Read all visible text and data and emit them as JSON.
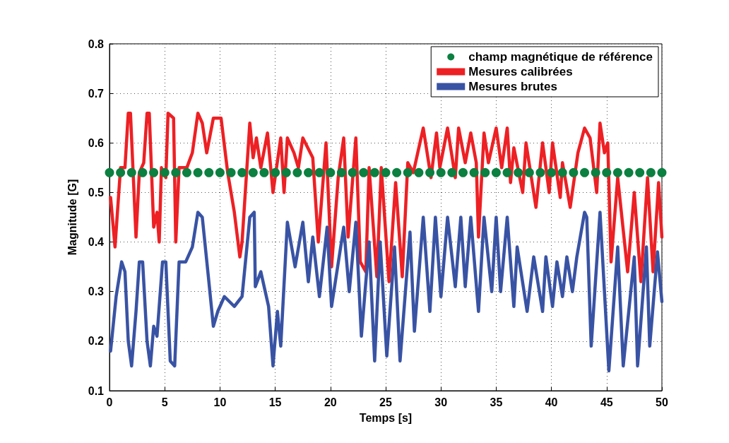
{
  "chart_data": {
    "type": "line",
    "xlabel": "Temps [s]",
    "ylabel": "Magnitude [G]",
    "xlim": [
      0,
      50
    ],
    "xticks": [
      0,
      5,
      10,
      15,
      20,
      25,
      30,
      35,
      40,
      45,
      50
    ],
    "ylim": [
      0.1,
      0.8
    ],
    "yticks": [
      0.1,
      0.2,
      0.3,
      0.4,
      0.5,
      0.6,
      0.7,
      0.8
    ],
    "grid": true,
    "legend": "top right",
    "series": [
      {
        "name": "champ magnétique de référence",
        "type": "scatter",
        "marker": "circle",
        "color": "#0b8040",
        "x": [
          0,
          1,
          2,
          3,
          4,
          5,
          6,
          7,
          8,
          9,
          10,
          11,
          12,
          13,
          14,
          15,
          16,
          17,
          18,
          19,
          20,
          21,
          22,
          23,
          24,
          25,
          26,
          27,
          28,
          29,
          30,
          31,
          32,
          33,
          34,
          35,
          36,
          37,
          38,
          39,
          40,
          41,
          42,
          43,
          44,
          45,
          46,
          47,
          48,
          49,
          50
        ],
        "values": [
          0.54,
          0.54,
          0.54,
          0.54,
          0.54,
          0.54,
          0.54,
          0.54,
          0.54,
          0.54,
          0.54,
          0.54,
          0.54,
          0.54,
          0.54,
          0.54,
          0.54,
          0.54,
          0.54,
          0.54,
          0.54,
          0.54,
          0.54,
          0.54,
          0.54,
          0.54,
          0.54,
          0.54,
          0.54,
          0.54,
          0.54,
          0.54,
          0.54,
          0.54,
          0.54,
          0.54,
          0.54,
          0.54,
          0.54,
          0.54,
          0.54,
          0.54,
          0.54,
          0.54,
          0.54,
          0.54,
          0.54,
          0.54,
          0.54,
          0.54,
          0.54
        ]
      },
      {
        "name": "Mesures calibrées",
        "color": "#ed2024",
        "x": [
          0.1,
          0.5,
          1.0,
          1.4,
          1.7,
          1.9,
          2.4,
          2.7,
          3.1,
          3.4,
          3.6,
          4.0,
          4.3,
          4.5,
          4.7,
          5.1,
          5.3,
          5.8,
          6.0,
          6.3,
          7.0,
          7.5,
          8.0,
          8.4,
          8.8,
          9.4,
          10.1,
          10.7,
          11.3,
          11.8,
          12.0,
          12.7,
          13.0,
          13.3,
          13.7,
          14.3,
          14.8,
          15.5,
          15.8,
          16.1,
          16.7,
          17.1,
          17.5,
          18.4,
          18.9,
          19.6,
          20.1,
          20.7,
          21.2,
          21.6,
          22.3,
          22.7,
          23.2,
          23.5,
          24.2,
          24.6,
          25.3,
          25.9,
          26.5,
          27.0,
          27.5,
          27.9,
          28.4,
          29.1,
          29.6,
          29.9,
          30.6,
          31.3,
          31.6,
          32.2,
          32.7,
          33.2,
          33.4,
          33.9,
          34.3,
          35.0,
          35.5,
          36.0,
          36.3,
          36.6,
          37.4,
          37.7,
          38.6,
          39.2,
          39.8,
          40.1,
          40.8,
          41.0,
          41.7,
          42.4,
          43.0,
          43.5,
          44.1,
          44.4,
          44.8,
          45.1,
          45.4,
          46.0,
          46.9,
          47.5,
          48.1,
          48.7,
          49.2,
          49.7,
          50.0
        ],
        "values": [
          0.49,
          0.39,
          0.55,
          0.55,
          0.66,
          0.66,
          0.41,
          0.54,
          0.56,
          0.66,
          0.66,
          0.43,
          0.46,
          0.4,
          0.55,
          0.53,
          0.66,
          0.65,
          0.4,
          0.55,
          0.55,
          0.58,
          0.66,
          0.64,
          0.58,
          0.65,
          0.65,
          0.54,
          0.46,
          0.37,
          0.4,
          0.64,
          0.57,
          0.61,
          0.55,
          0.62,
          0.5,
          0.61,
          0.5,
          0.61,
          0.58,
          0.55,
          0.61,
          0.57,
          0.4,
          0.6,
          0.35,
          0.53,
          0.61,
          0.41,
          0.61,
          0.36,
          0.34,
          0.55,
          0.33,
          0.55,
          0.32,
          0.52,
          0.33,
          0.56,
          0.54,
          0.58,
          0.63,
          0.53,
          0.62,
          0.55,
          0.63,
          0.53,
          0.63,
          0.56,
          0.62,
          0.56,
          0.41,
          0.62,
          0.56,
          0.63,
          0.55,
          0.63,
          0.52,
          0.59,
          0.5,
          0.6,
          0.47,
          0.6,
          0.5,
          0.6,
          0.49,
          0.56,
          0.47,
          0.58,
          0.63,
          0.61,
          0.5,
          0.64,
          0.58,
          0.6,
          0.36,
          0.53,
          0.34,
          0.5,
          0.32,
          0.53,
          0.34,
          0.52,
          0.41
        ]
      },
      {
        "name": "Mesures brutes",
        "color": "#3953a4",
        "x": [
          0.1,
          0.6,
          1.1,
          1.4,
          1.7,
          2.0,
          2.4,
          2.7,
          3.0,
          3.4,
          3.7,
          4.0,
          4.3,
          4.8,
          5.1,
          5.5,
          5.9,
          6.3,
          6.9,
          7.5,
          8.0,
          8.4,
          8.95,
          9.4,
          9.8,
          10.4,
          11.3,
          12.0,
          12.7,
          13.1,
          13.2,
          13.7,
          14.4,
          14.8,
          15.2,
          15.5,
          16.1,
          16.8,
          17.5,
          18.0,
          18.4,
          19.0,
          19.7,
          20.1,
          21.2,
          21.7,
          22.3,
          22.8,
          23.5,
          24.0,
          24.5,
          25.1,
          25.8,
          26.3,
          27.2,
          27.6,
          28.4,
          29.0,
          29.5,
          30.0,
          30.6,
          31.3,
          31.8,
          32.2,
          32.7,
          33.4,
          33.9,
          34.6,
          35.0,
          35.4,
          36.0,
          36.6,
          36.9,
          37.8,
          38.4,
          39.2,
          39.5,
          40.1,
          40.5,
          41.0,
          41.4,
          41.9,
          42.3,
          43.0,
          43.2,
          43.6,
          44.4,
          45.2,
          46.0,
          46.5,
          47.5,
          47.8,
          48.6,
          48.9,
          49.6,
          50.0
        ],
        "values": [
          0.18,
          0.29,
          0.36,
          0.34,
          0.2,
          0.15,
          0.26,
          0.36,
          0.36,
          0.2,
          0.15,
          0.23,
          0.21,
          0.36,
          0.36,
          0.16,
          0.15,
          0.36,
          0.36,
          0.39,
          0.46,
          0.45,
          0.33,
          0.23,
          0.26,
          0.29,
          0.27,
          0.29,
          0.45,
          0.46,
          0.31,
          0.34,
          0.27,
          0.15,
          0.26,
          0.19,
          0.44,
          0.35,
          0.44,
          0.32,
          0.41,
          0.29,
          0.43,
          0.27,
          0.43,
          0.3,
          0.44,
          0.21,
          0.4,
          0.16,
          0.4,
          0.17,
          0.39,
          0.16,
          0.42,
          0.22,
          0.45,
          0.26,
          0.45,
          0.29,
          0.45,
          0.31,
          0.45,
          0.31,
          0.45,
          0.26,
          0.45,
          0.3,
          0.45,
          0.3,
          0.45,
          0.27,
          0.39,
          0.26,
          0.37,
          0.26,
          0.37,
          0.27,
          0.36,
          0.29,
          0.37,
          0.3,
          0.37,
          0.46,
          0.45,
          0.19,
          0.46,
          0.14,
          0.39,
          0.15,
          0.37,
          0.15,
          0.39,
          0.19,
          0.38,
          0.28
        ]
      }
    ]
  }
}
